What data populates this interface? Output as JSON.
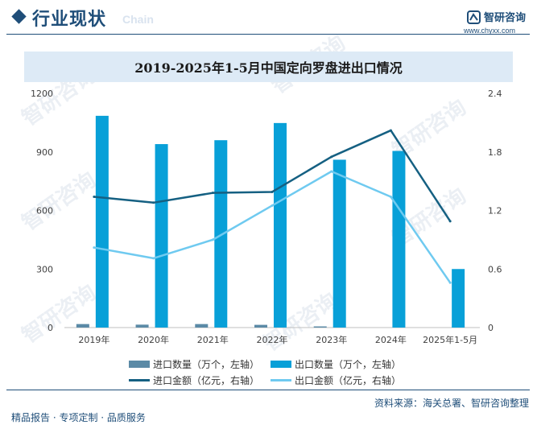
{
  "header": {
    "section_title": "行业现状",
    "section_watermark": "Chain",
    "brand_name": "智研咨询",
    "brand_url": "www.chyxx.com"
  },
  "chart_data": {
    "type": "bar+line",
    "title": "2019-2025年1-5月中国定向罗盘进出口情况",
    "categories": [
      "2019年",
      "2020年",
      "2021年",
      "2022年",
      "2023年",
      "2024年",
      "2025年1-5月"
    ],
    "left_axis": {
      "min": 0,
      "max": 1200,
      "ticks": [
        0,
        300,
        600,
        900,
        1200
      ]
    },
    "right_axis": {
      "min": 0,
      "max": 2.4,
      "ticks": [
        "0",
        "0.6",
        "1.2",
        "1.8",
        "2.4"
      ]
    },
    "series": [
      {
        "name": "进口数量（万个，左轴）",
        "kind": "bar",
        "axis": "left",
        "color": "#5b8aa6",
        "values": [
          18,
          15,
          18,
          14,
          6,
          0,
          0
        ]
      },
      {
        "name": "出口数量（万个，左轴）",
        "kind": "bar",
        "axis": "left",
        "color": "#08a0d8",
        "values": [
          1085,
          940,
          960,
          1048,
          860,
          905,
          300
        ]
      },
      {
        "name": "进口金额（亿元，右轴）",
        "kind": "line",
        "axis": "right",
        "color": "#156082",
        "values": [
          1.34,
          1.28,
          1.38,
          1.39,
          1.75,
          2.02,
          1.09
        ]
      },
      {
        "name": "出口金额（亿元，右轴）",
        "kind": "line",
        "axis": "right",
        "color": "#6fcaf0",
        "values": [
          0.82,
          0.71,
          0.9,
          1.25,
          1.6,
          1.34,
          0.46
        ]
      }
    ],
    "legend_position": "bottom",
    "grid": false
  },
  "footer": {
    "source": "资料来源：海关总署、智研咨询整理",
    "tagline": "精品报告 · 专项定制 · 品质服务"
  },
  "watermark_text": "智研咨询"
}
